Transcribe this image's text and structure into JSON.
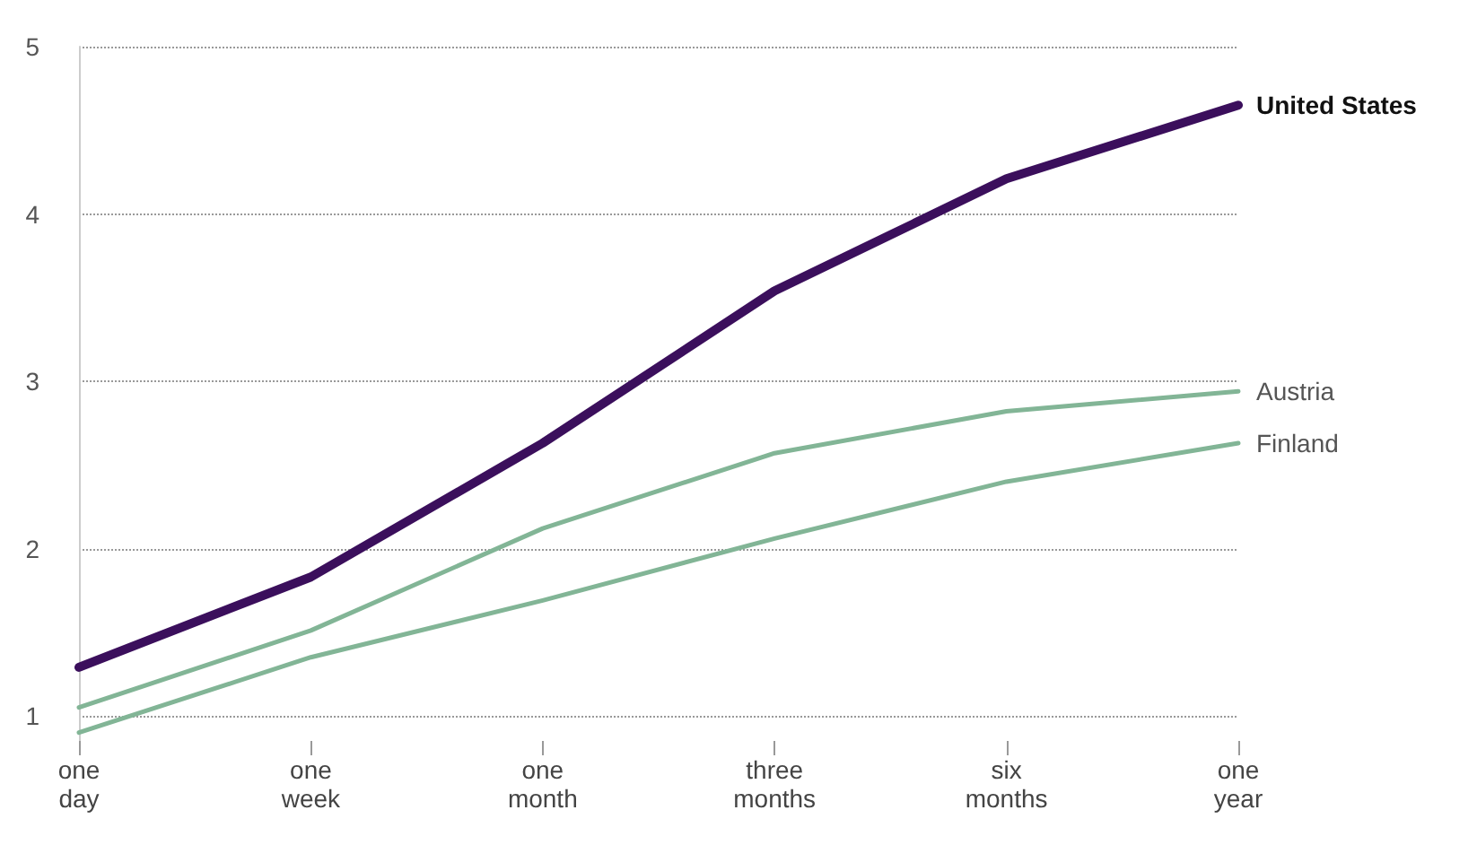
{
  "chart_data": {
    "type": "line",
    "categories": [
      "one day",
      "one week",
      "one month",
      "three months",
      "six months",
      "one year"
    ],
    "series": [
      {
        "name": "United States",
        "color": "#3b0f5c",
        "values": [
          1.29,
          1.83,
          2.63,
          3.54,
          4.21,
          4.65
        ]
      },
      {
        "name": "Austria",
        "color": "#82b596",
        "values": [
          1.05,
          1.51,
          2.12,
          2.57,
          2.82,
          2.94
        ]
      },
      {
        "name": "Finland",
        "color": "#82b596",
        "values": [
          0.9,
          1.35,
          1.69,
          2.06,
          2.4,
          2.63
        ]
      }
    ],
    "ylim": [
      0.85,
      5
    ],
    "yticks": [
      1,
      2,
      3,
      4,
      5
    ],
    "grid": "y",
    "legend": false,
    "marker": "none",
    "line_style": "solid"
  }
}
